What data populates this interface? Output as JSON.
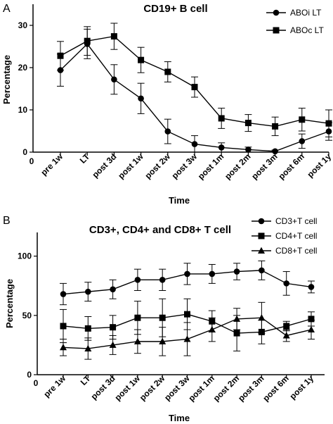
{
  "chart_data": [
    {
      "type": "line",
      "panel": "A",
      "title": "CD19+ B cell",
      "xlabel": "Time",
      "ylabel": "Percentage",
      "ylim": [
        0,
        35
      ],
      "yticks": [
        0,
        10,
        20,
        30
      ],
      "x_origin_label": "0",
      "categories": [
        "pre 1w",
        "LT",
        "post 3d",
        "post 1w",
        "post 2w",
        "post 3w",
        "post 1m",
        "post 2m",
        "post 3m",
        "post 6m",
        "post 1y"
      ],
      "legend_position": "top-right",
      "series": [
        {
          "name": "ABOi LT",
          "marker": "circle",
          "values": [
            19.4,
            25.6,
            17.2,
            12.7,
            4.9,
            1.9,
            1.1,
            0.6,
            0.2,
            2.6,
            4.9
          ],
          "errors": [
            3.8,
            3.5,
            3.5,
            3.6,
            2.9,
            2.0,
            1.1,
            0.6,
            0.3,
            1.7,
            2.1
          ]
        },
        {
          "name": "ABOc LT",
          "marker": "square",
          "values": [
            22.8,
            26.3,
            27.4,
            21.8,
            19.0,
            15.4,
            8.0,
            6.9,
            6.1,
            7.7,
            6.8
          ],
          "errors": [
            3.4,
            3.4,
            3.1,
            3.0,
            2.4,
            2.4,
            2.4,
            2.0,
            2.2,
            2.7,
            3.2
          ]
        }
      ]
    },
    {
      "type": "line",
      "panel": "B",
      "title": "CD3+, CD4+ and CD8+ T cell",
      "xlabel": "Time",
      "ylabel": "Percentage",
      "ylim": [
        0,
        120
      ],
      "yticks": [
        0,
        50,
        100
      ],
      "x_origin_label": "0",
      "categories": [
        "pre 1w",
        "LT",
        "post 3d",
        "post 1w",
        "post 2w",
        "post 3w",
        "post 1m",
        "post 2m",
        "post 3m",
        "post 6m",
        "post 1y"
      ],
      "legend_position": "top-right",
      "series": [
        {
          "name": "CD3+T cell",
          "marker": "circle",
          "values": [
            68,
            70,
            72,
            80,
            80,
            85,
            85,
            87,
            88,
            77,
            74
          ],
          "errors": [
            9,
            8,
            8,
            9,
            9,
            9,
            8,
            7,
            8,
            10,
            5
          ]
        },
        {
          "name": "CD4+T cell",
          "marker": "square",
          "values": [
            41,
            39,
            40,
            48,
            48,
            51,
            45,
            35,
            36,
            41,
            47
          ],
          "errors": [
            14,
            10,
            10,
            14,
            16,
            13,
            9,
            15,
            10,
            4,
            6
          ]
        },
        {
          "name": "CD8+T cell",
          "marker": "triangle",
          "values": [
            23,
            22,
            25,
            28,
            28,
            30,
            38,
            47,
            48,
            33,
            38
          ],
          "errors": [
            7,
            9,
            8,
            10,
            12,
            14,
            10,
            9,
            13,
            5,
            8
          ]
        }
      ]
    }
  ]
}
